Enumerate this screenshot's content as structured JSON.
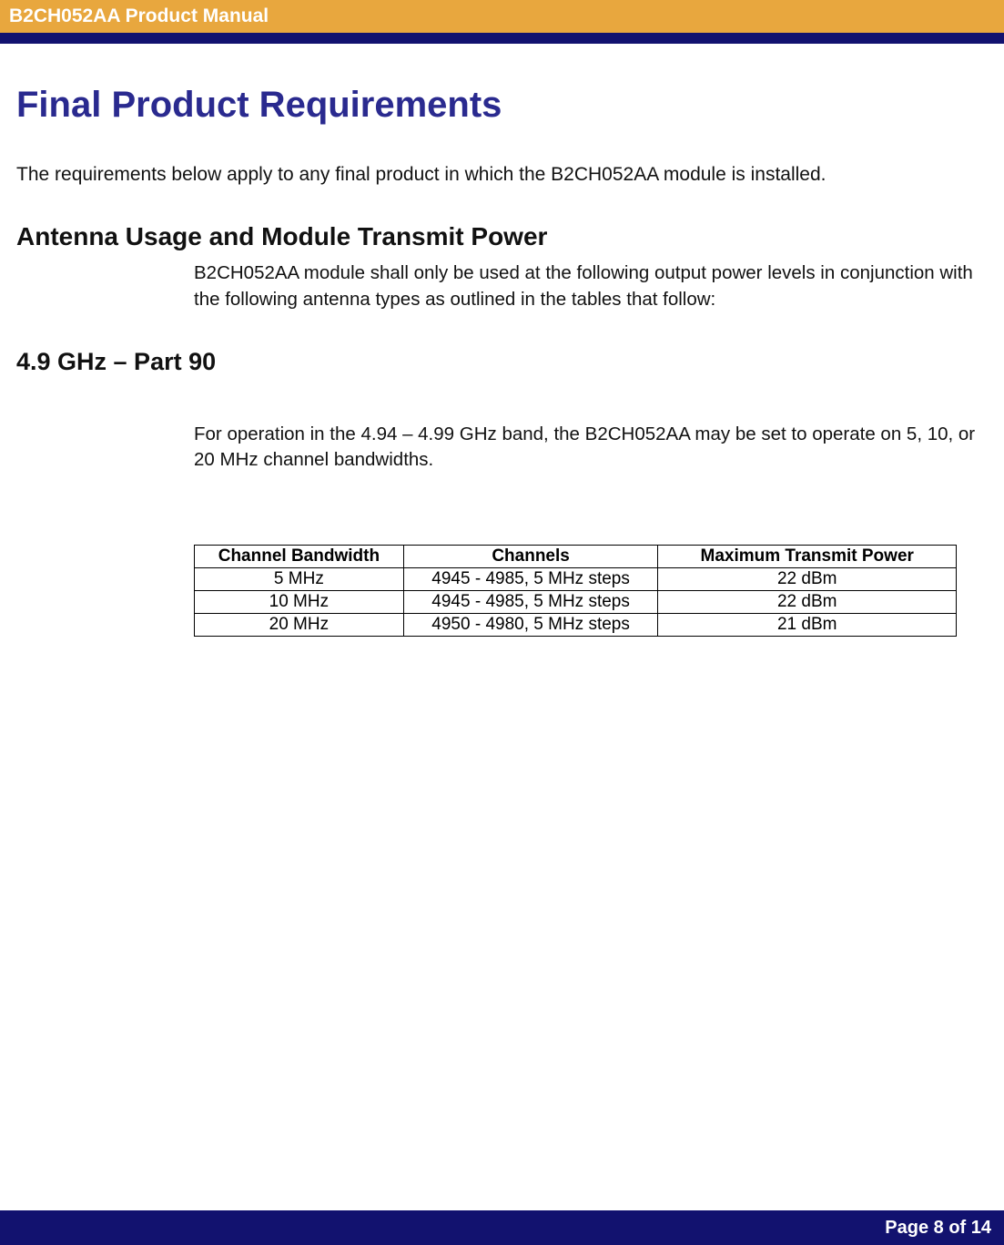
{
  "header": {
    "title": "B2CH052AA Product Manual"
  },
  "main": {
    "h1": "Final Product Requirements",
    "intro": "The requirements below apply to any final product in which the B2CH052AA module is installed.",
    "section_antenna": {
      "heading": "Antenna Usage and Module Transmit Power",
      "body": "B2CH052AA module shall only be used at the following output power levels in conjunction with the following antenna types as outlined in the tables that follow:"
    },
    "section_49": {
      "heading": "4.9 GHz – Part 90",
      "body": "For operation in the 4.94 – 4.99 GHz band, the B2CH052AA may be set to operate on 5, 10, or 20 MHz channel bandwidths."
    }
  },
  "table": {
    "columns": [
      "Channel Bandwidth",
      "Channels",
      "Maximum Transmit Power"
    ],
    "rows": [
      [
        "5 MHz",
        "4945 - 4985, 5 MHz steps",
        "22 dBm"
      ],
      [
        "10 MHz",
        "4945 - 4985, 5 MHz steps",
        "22 dBm"
      ],
      [
        "20 MHz",
        "4950 - 4980, 5 MHz steps",
        "21 dBm"
      ]
    ],
    "col_widths": [
      "230px",
      "280px",
      "328px"
    ],
    "border_color": "#000000",
    "header_fontweight": "bold",
    "cell_fontsize": 19,
    "font_family": "Arial"
  },
  "colors": {
    "header_bg": "#e8a73e",
    "header_underline": "#12126f",
    "footer_bg": "#12126f",
    "heading_color": "#2a2a8f",
    "text_color": "#111111",
    "white": "#ffffff",
    "page_bg": "#ffffff"
  },
  "typography": {
    "h1_size": 40,
    "h2_size": 28,
    "h3_size": 27,
    "body_size": 20.5,
    "header_title_size": 21,
    "footer_size": 20
  },
  "footer": {
    "text": "Page 8 of 14"
  }
}
